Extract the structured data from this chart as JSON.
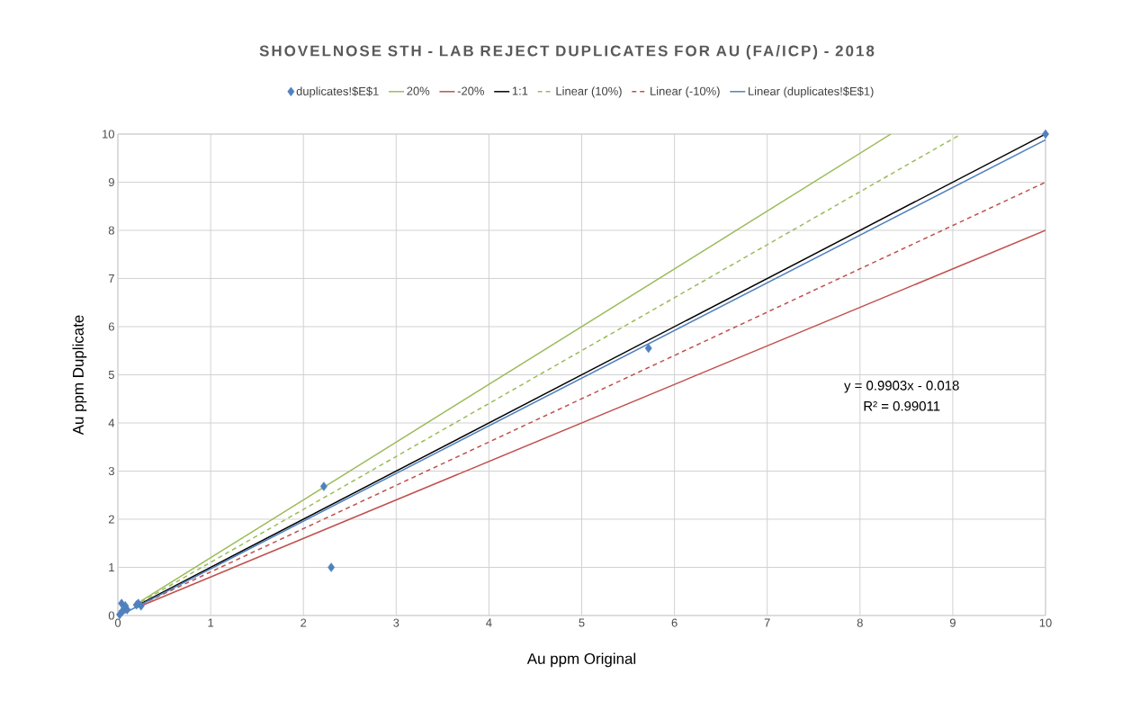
{
  "chart_data": {
    "type": "scatter",
    "title": "SHOVELNOSE STH - LAB REJECT DUPLICATES FOR AU (FA/ICP) -  2018",
    "xlabel": "Au ppm Original",
    "ylabel": "Au ppm  Duplicate",
    "xlim": [
      0,
      10
    ],
    "ylim": [
      0,
      10
    ],
    "xticks": [
      0,
      1,
      2,
      3,
      4,
      5,
      6,
      7,
      8,
      9,
      10
    ],
    "yticks": [
      0,
      1,
      2,
      3,
      4,
      5,
      6,
      7,
      8,
      9,
      10
    ],
    "grid": true,
    "legend": "top",
    "annotations": [
      "y = 0.9903x - 0.018",
      "R² = 0.99011"
    ],
    "series": [
      {
        "name": "duplicates!$E$1",
        "type": "scatter",
        "marker": "diamond",
        "color": "#4f81bd",
        "x": [
          0.02,
          0.04,
          0.05,
          0.08,
          0.1,
          0.2,
          0.22,
          0.25,
          2.22,
          2.3,
          5.72,
          10
        ],
        "values": [
          0.02,
          0.25,
          0.1,
          0.2,
          0.12,
          0.22,
          0.25,
          0.2,
          2.68,
          1.0,
          5.55,
          10
        ]
      },
      {
        "name": "20%",
        "type": "line",
        "color": "#9bbb59",
        "line_style": "solid",
        "x": [
          0.25,
          8.333
        ],
        "values": [
          0.3,
          10
        ]
      },
      {
        "name": "-20%",
        "type": "line",
        "color": "#c0504d",
        "line_style": "solid",
        "x": [
          0.25,
          10
        ],
        "values": [
          0.2,
          8
        ]
      },
      {
        "name": "1:1",
        "type": "line",
        "color": "#000000",
        "line_style": "solid",
        "x": [
          0.25,
          10
        ],
        "values": [
          0.25,
          10
        ]
      },
      {
        "name": "Linear (10%)",
        "type": "line",
        "color": "#9bbb59",
        "line_style": "dashed",
        "x": [
          0.25,
          9.09
        ],
        "values": [
          0.28,
          10
        ]
      },
      {
        "name": "Linear (-10%)",
        "type": "line",
        "color": "#c0504d",
        "line_style": "dashed",
        "x": [
          0.25,
          10
        ],
        "values": [
          0.23,
          9
        ]
      },
      {
        "name": "Linear (duplicates!$E$1)",
        "type": "line",
        "color": "#4f81bd",
        "line_style": "solid",
        "x": [
          0.02,
          10
        ],
        "values": [
          0.0,
          9.88
        ]
      }
    ]
  }
}
